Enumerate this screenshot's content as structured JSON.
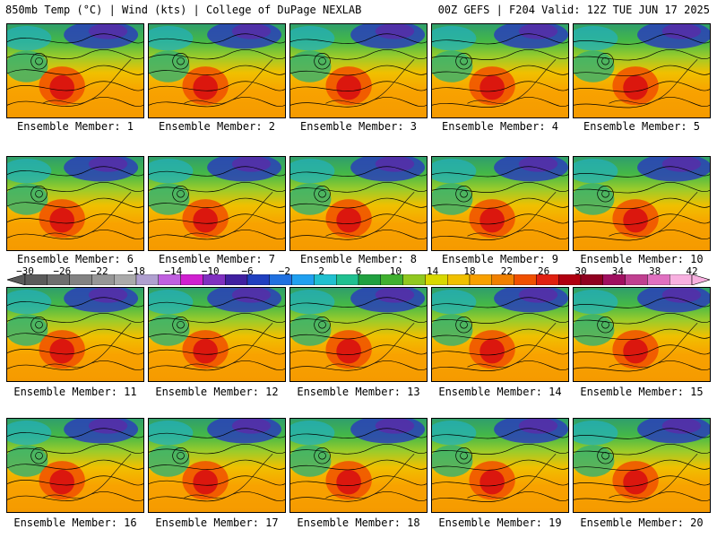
{
  "header": {
    "left": "850mb Temp (°C) | Wind (kts) | College of DuPage NEXLAB",
    "right": "00Z GEFS | F204 Valid: 12Z TUE JUN 17 2025"
  },
  "members": [
    "Ensemble Member: 1",
    "Ensemble Member: 2",
    "Ensemble Member: 3",
    "Ensemble Member: 4",
    "Ensemble Member: 5",
    "Ensemble Member: 6",
    "Ensemble Member: 7",
    "Ensemble Member: 8",
    "Ensemble Member: 9",
    "Ensemble Member: 10",
    "Ensemble Member: 11",
    "Ensemble Member: 12",
    "Ensemble Member: 13",
    "Ensemble Member: 14",
    "Ensemble Member: 15",
    "Ensemble Member: 16",
    "Ensemble Member: 17",
    "Ensemble Member: 18",
    "Ensemble Member: 19",
    "Ensemble Member: 20"
  ],
  "colorbar": {
    "ticks": [
      "−30",
      "−26",
      "−22",
      "−18",
      "−14",
      "−10",
      "−6",
      "−2",
      "2",
      "6",
      "10",
      "14",
      "18",
      "22",
      "26",
      "30",
      "34",
      "38",
      "42"
    ],
    "colors": [
      "#5a5a5a",
      "#6e6e6e",
      "#828282",
      "#969696",
      "#aaaaaa",
      "#b0a0d0",
      "#c060e0",
      "#d020d0",
      "#8030c0",
      "#4020a0",
      "#2040c0",
      "#2070e0",
      "#20a0f0",
      "#20c0d0",
      "#20c090",
      "#20a040",
      "#40b030",
      "#90c820",
      "#d8d800",
      "#f0c000",
      "#f8a000",
      "#f08000",
      "#f05000",
      "#e02010",
      "#b00010",
      "#900020",
      "#a01060",
      "#c04090",
      "#e070c0",
      "#f8b0e0"
    ]
  }
}
